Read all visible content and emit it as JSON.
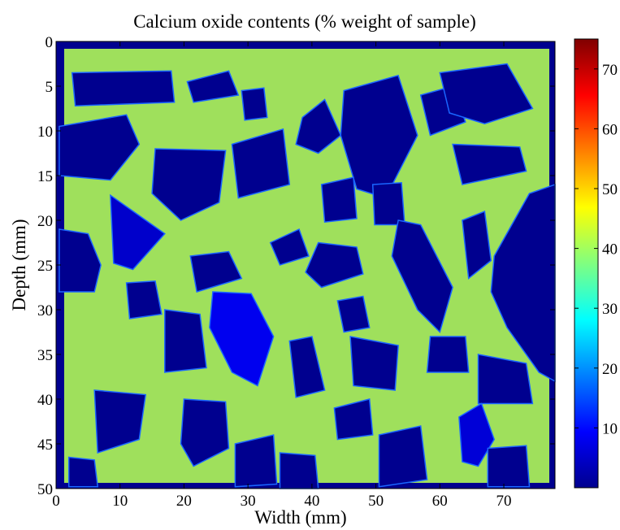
{
  "chart_data": {
    "type": "heatmap",
    "title": "Calcium oxide contents (% weight of sample)",
    "xlabel": "Width (mm)",
    "ylabel": "Depth (mm)",
    "xlim": [
      0,
      78
    ],
    "ylim": [
      0,
      50
    ],
    "y_reversed": true,
    "x_ticks": [
      0,
      10,
      20,
      30,
      40,
      50,
      60,
      70
    ],
    "y_ticks": [
      0,
      5,
      10,
      15,
      20,
      25,
      30,
      35,
      40,
      45,
      50
    ],
    "colorbar": {
      "colormap": "jet",
      "range": [
        0,
        75
      ],
      "ticks": [
        10,
        20,
        30,
        40,
        50,
        60,
        70
      ]
    },
    "grid": false,
    "background_value": 0,
    "matrix_value": 38,
    "aggregates": [
      {
        "points": [
          [
            2.5,
            3.5
          ],
          [
            18,
            3.3
          ],
          [
            18.5,
            6.8
          ],
          [
            3,
            7.2
          ]
        ],
        "value": 0
      },
      {
        "points": [
          [
            0.5,
            9.5
          ],
          [
            11,
            8.2
          ],
          [
            13,
            11.5
          ],
          [
            8.5,
            15.5
          ],
          [
            0.5,
            15
          ]
        ],
        "value": 0
      },
      {
        "points": [
          [
            15.5,
            12
          ],
          [
            26.5,
            12.2
          ],
          [
            25.5,
            18
          ],
          [
            19.5,
            20
          ],
          [
            15,
            17
          ]
        ],
        "value": 0
      },
      {
        "points": [
          [
            27.5,
            11.5
          ],
          [
            35.5,
            9.8
          ],
          [
            36.5,
            16
          ],
          [
            28.5,
            17.5
          ]
        ],
        "value": 0
      },
      {
        "points": [
          [
            38.5,
            8.5
          ],
          [
            42,
            6.5
          ],
          [
            44.5,
            10.5
          ],
          [
            41,
            12.5
          ],
          [
            37.5,
            11.5
          ]
        ],
        "value": 0
      },
      {
        "points": [
          [
            20.5,
            4.5
          ],
          [
            27,
            3.3
          ],
          [
            28.5,
            6
          ],
          [
            21.5,
            6.8
          ]
        ],
        "value": 0
      },
      {
        "points": [
          [
            29,
            5.5
          ],
          [
            32.5,
            5.2
          ],
          [
            33,
            8.5
          ],
          [
            29.5,
            8.8
          ]
        ],
        "value": 0
      },
      {
        "points": [
          [
            45,
            5.5
          ],
          [
            53.5,
            3.8
          ],
          [
            56.5,
            10.5
          ],
          [
            51.5,
            17.5
          ],
          [
            47,
            16.5
          ],
          [
            44.5,
            10.5
          ]
        ],
        "value": 0
      },
      {
        "points": [
          [
            57,
            6
          ],
          [
            62,
            5
          ],
          [
            64,
            9
          ],
          [
            58.5,
            10.5
          ]
        ],
        "value": 0
      },
      {
        "points": [
          [
            60,
            3.5
          ],
          [
            70.5,
            2.5
          ],
          [
            74.5,
            7.5
          ],
          [
            67,
            9.2
          ],
          [
            61.5,
            8
          ]
        ],
        "value": 0
      },
      {
        "points": [
          [
            62,
            11.5
          ],
          [
            72.5,
            11.8
          ],
          [
            73.5,
            14.5
          ],
          [
            63.5,
            16
          ]
        ],
        "value": 0
      },
      {
        "points": [
          [
            41.5,
            16
          ],
          [
            46.5,
            15.2
          ],
          [
            47,
            19.8
          ],
          [
            42,
            20.2
          ]
        ],
        "value": 0
      },
      {
        "points": [
          [
            49.5,
            16
          ],
          [
            54,
            15.8
          ],
          [
            54.5,
            20.5
          ],
          [
            49.8,
            20.5
          ]
        ],
        "value": 0
      },
      {
        "points": [
          [
            8.5,
            17.2
          ],
          [
            17,
            21.5
          ],
          [
            12,
            25.5
          ],
          [
            9,
            24.8
          ]
        ],
        "value": 5
      },
      {
        "points": [
          [
            0.5,
            21
          ],
          [
            5,
            21.5
          ],
          [
            7,
            25
          ],
          [
            6,
            28
          ],
          [
            0.5,
            28
          ]
        ],
        "value": 0
      },
      {
        "points": [
          [
            33.5,
            22.5
          ],
          [
            38,
            21
          ],
          [
            39.5,
            24
          ],
          [
            35,
            25
          ]
        ],
        "value": 0
      },
      {
        "points": [
          [
            41,
            22.5
          ],
          [
            47,
            23
          ],
          [
            48,
            26
          ],
          [
            41.5,
            27.5
          ],
          [
            39,
            25.8
          ]
        ],
        "value": 0
      },
      {
        "points": [
          [
            21,
            24
          ],
          [
            27,
            23.5
          ],
          [
            29,
            26.5
          ],
          [
            22,
            28
          ]
        ],
        "value": 0
      },
      {
        "points": [
          [
            53.5,
            20
          ],
          [
            57,
            20.5
          ],
          [
            62,
            27.5
          ],
          [
            60,
            32.5
          ],
          [
            56.5,
            30
          ],
          [
            52.5,
            24
          ]
        ],
        "value": 0
      },
      {
        "points": [
          [
            63.5,
            20
          ],
          [
            67,
            19
          ],
          [
            68,
            24.5
          ],
          [
            64.5,
            26.5
          ]
        ],
        "value": 0
      },
      {
        "points": [
          [
            68.5,
            24
          ],
          [
            74,
            17
          ],
          [
            78,
            16
          ],
          [
            78,
            38
          ],
          [
            75.5,
            37
          ],
          [
            70.5,
            32
          ],
          [
            68,
            28
          ]
        ],
        "value": 0
      },
      {
        "points": [
          [
            11,
            27
          ],
          [
            15.5,
            26.8
          ],
          [
            16.5,
            30.5
          ],
          [
            11.5,
            31
          ]
        ],
        "value": 0
      },
      {
        "points": [
          [
            24.5,
            28
          ],
          [
            30.5,
            28.2
          ],
          [
            34,
            33
          ],
          [
            31.5,
            38.5
          ],
          [
            27.5,
            37
          ],
          [
            24,
            32
          ]
        ],
        "value": 8
      },
      {
        "points": [
          [
            17,
            30
          ],
          [
            22.5,
            30.5
          ],
          [
            23.5,
            36.5
          ],
          [
            17,
            37
          ]
        ],
        "value": 0
      },
      {
        "points": [
          [
            44,
            29
          ],
          [
            48,
            28.5
          ],
          [
            49,
            32
          ],
          [
            45,
            32.5
          ]
        ],
        "value": 0
      },
      {
        "points": [
          [
            36.5,
            33.5
          ],
          [
            40,
            33
          ],
          [
            42,
            39
          ],
          [
            37.5,
            39.8
          ]
        ],
        "value": 0
      },
      {
        "points": [
          [
            46,
            33
          ],
          [
            53.5,
            34
          ],
          [
            53,
            39
          ],
          [
            46.5,
            38.5
          ]
        ],
        "value": 0
      },
      {
        "points": [
          [
            58.5,
            33
          ],
          [
            64,
            33
          ],
          [
            64.5,
            37
          ],
          [
            58,
            37
          ]
        ],
        "value": 0
      },
      {
        "points": [
          [
            66,
            35
          ],
          [
            73.5,
            36
          ],
          [
            74.5,
            40.5
          ],
          [
            66,
            40.5
          ]
        ],
        "value": 0
      },
      {
        "points": [
          [
            6,
            39
          ],
          [
            14,
            39.5
          ],
          [
            13,
            44.5
          ],
          [
            6.5,
            46
          ]
        ],
        "value": 0
      },
      {
        "points": [
          [
            20,
            40
          ],
          [
            26.5,
            40.3
          ],
          [
            27,
            45.5
          ],
          [
            21.5,
            47.5
          ],
          [
            19.5,
            45
          ]
        ],
        "value": 0
      },
      {
        "points": [
          [
            28,
            45
          ],
          [
            34,
            44
          ],
          [
            34.5,
            49.5
          ],
          [
            28,
            49.8
          ]
        ],
        "value": 0
      },
      {
        "points": [
          [
            43.5,
            41
          ],
          [
            49,
            40
          ],
          [
            49.5,
            44
          ],
          [
            44,
            44.5
          ]
        ],
        "value": 0
      },
      {
        "points": [
          [
            50.5,
            44
          ],
          [
            57,
            43
          ],
          [
            58,
            49
          ],
          [
            50.5,
            49.8
          ]
        ],
        "value": 0
      },
      {
        "points": [
          [
            63,
            42
          ],
          [
            66.5,
            40.5
          ],
          [
            68.5,
            44.5
          ],
          [
            66,
            47.5
          ],
          [
            63.5,
            47
          ]
        ],
        "value": 6
      },
      {
        "points": [
          [
            35,
            46
          ],
          [
            40.5,
            46.3
          ],
          [
            41,
            50
          ],
          [
            35,
            50
          ]
        ],
        "value": 0
      },
      {
        "points": [
          [
            67.5,
            45.5
          ],
          [
            73.5,
            45.2
          ],
          [
            74,
            49.8
          ],
          [
            67.5,
            49.8
          ]
        ],
        "value": 0
      },
      {
        "points": [
          [
            2,
            46.5
          ],
          [
            6,
            46.8
          ],
          [
            6.5,
            49.8
          ],
          [
            2,
            49.8
          ]
        ],
        "value": 0
      }
    ]
  }
}
